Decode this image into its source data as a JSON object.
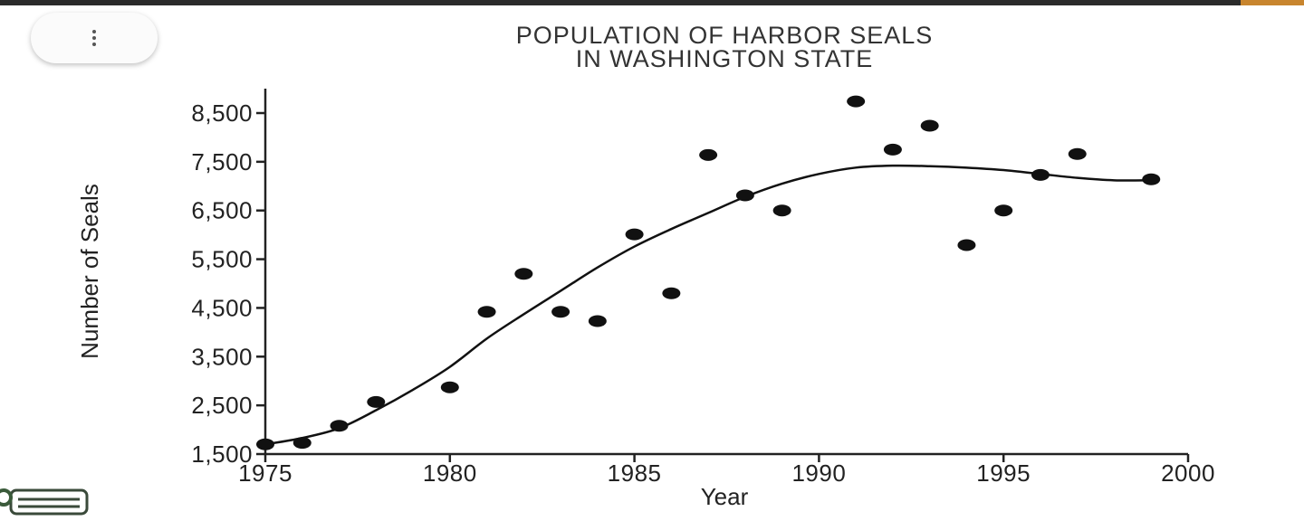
{
  "toolbar": {
    "menu_icon": "vertical-ellipsis-icon"
  },
  "chart_data": {
    "type": "scatter",
    "title_lines": [
      "POPULATION OF HARBOR SEALS",
      "IN WASHINGTON STATE"
    ],
    "xlabel": "Year",
    "ylabel": "Number of Seals",
    "xlim": [
      1975,
      2000
    ],
    "ylim": [
      1500,
      9000
    ],
    "x_ticks": [
      1975,
      1980,
      1985,
      1990,
      1995,
      2000
    ],
    "x_tick_labels": [
      "1975",
      "1980",
      "1985",
      "1990",
      "1995",
      "2000"
    ],
    "y_ticks": [
      1500,
      2500,
      3500,
      4500,
      5500,
      6500,
      7500,
      8500
    ],
    "y_tick_labels": [
      "1,500",
      "2,500",
      "3,500",
      "4,500",
      "5,500",
      "6,500",
      "7,500",
      "8,500"
    ],
    "grid": false,
    "points": [
      {
        "x": 1975,
        "y": 1700
      },
      {
        "x": 1976,
        "y": 1730
      },
      {
        "x": 1977,
        "y": 2080
      },
      {
        "x": 1978,
        "y": 2570
      },
      {
        "x": 1980,
        "y": 2870
      },
      {
        "x": 1981,
        "y": 4420
      },
      {
        "x": 1982,
        "y": 5200
      },
      {
        "x": 1983,
        "y": 4420
      },
      {
        "x": 1984,
        "y": 4230
      },
      {
        "x": 1985,
        "y": 6010
      },
      {
        "x": 1986,
        "y": 4800
      },
      {
        "x": 1987,
        "y": 7640
      },
      {
        "x": 1988,
        "y": 6810
      },
      {
        "x": 1989,
        "y": 6500
      },
      {
        "x": 1991,
        "y": 8740
      },
      {
        "x": 1992,
        "y": 7750
      },
      {
        "x": 1993,
        "y": 8240
      },
      {
        "x": 1994,
        "y": 5790
      },
      {
        "x": 1995,
        "y": 6500
      },
      {
        "x": 1996,
        "y": 7230
      },
      {
        "x": 1997,
        "y": 7660
      },
      {
        "x": 1999,
        "y": 7140
      }
    ],
    "trend_curve": [
      {
        "x": 1975,
        "y": 1700
      },
      {
        "x": 1976,
        "y": 1830
      },
      {
        "x": 1977,
        "y": 2030
      },
      {
        "x": 1978,
        "y": 2400
      },
      {
        "x": 1979,
        "y": 2820
      },
      {
        "x": 1980,
        "y": 3290
      },
      {
        "x": 1981,
        "y": 3870
      },
      {
        "x": 1982,
        "y": 4370
      },
      {
        "x": 1983,
        "y": 4850
      },
      {
        "x": 1984,
        "y": 5330
      },
      {
        "x": 1985,
        "y": 5760
      },
      {
        "x": 1986,
        "y": 6120
      },
      {
        "x": 1987,
        "y": 6450
      },
      {
        "x": 1988,
        "y": 6780
      },
      {
        "x": 1989,
        "y": 7050
      },
      {
        "x": 1990,
        "y": 7250
      },
      {
        "x": 1991,
        "y": 7380
      },
      {
        "x": 1992,
        "y": 7420
      },
      {
        "x": 1993,
        "y": 7410
      },
      {
        "x": 1994,
        "y": 7380
      },
      {
        "x": 1995,
        "y": 7330
      },
      {
        "x": 1996,
        "y": 7250
      },
      {
        "x": 1997,
        "y": 7170
      },
      {
        "x": 1998,
        "y": 7120
      },
      {
        "x": 1999,
        "y": 7120
      }
    ]
  }
}
